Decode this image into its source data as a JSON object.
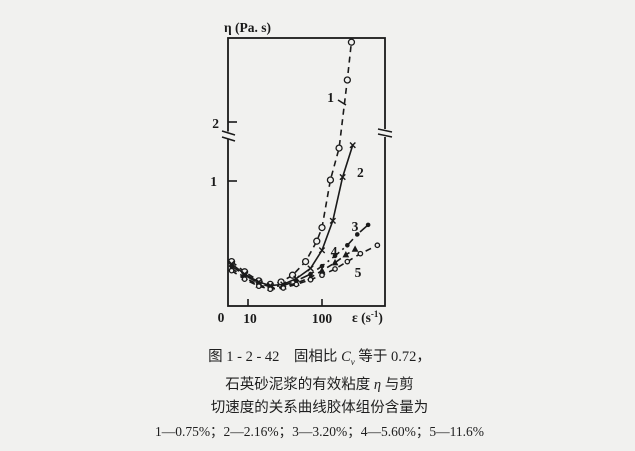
{
  "page": {
    "background": "#f1f1ef",
    "ink": "#1a1a1a"
  },
  "chart": {
    "ylabel_text": "η (Pa. s)",
    "xlabel_pre": "ε (s",
    "xlabel_sup": "-1",
    "xlabel_post": ")",
    "y_tick_2": "2",
    "y_tick_1": "1",
    "x_tick_0": "0",
    "x_tick_10": "10",
    "x_tick_100": "100",
    "curve_labels": {
      "c1": "1",
      "c2": "2",
      "c3": "3",
      "c4": "4",
      "c5": "5"
    }
  },
  "caption": {
    "line1_prefix": "图 1 - 2 - 42　固相比 ",
    "line1_var": "C",
    "line1_sub": "v",
    "line1_suffix": " 等于 0.72，",
    "line2_prefix": "石英砂泥浆的有效粘度 ",
    "line2_var": "η",
    "line2_suffix": " 与剪",
    "line3": "切速度的关系曲线胶体组份含量为",
    "legend": "1—0.75%；2—2.16%；3—3.20%；4—5.60%；5—11.6%"
  },
  "chart_data": {
    "type": "line",
    "title": "图 1-2-42 固相比 Cv 等于 0.72，石英砂泥浆的有效粘度 η 与剪切速度的关系曲线",
    "xlabel": "ε (s⁻¹)",
    "ylabel": "η (Pa.s)",
    "xscale": "log",
    "x_ticks_shown": [
      0,
      10,
      100
    ],
    "y_ticks_shown": [
      1,
      2
    ],
    "y_axis_break_above": 2,
    "grid": false,
    "legend_note": "胶体组份含量: 1—0.75%；2—2.16%；3—3.20%；4—5.60%；5—11.6%",
    "series": [
      {
        "label": "1",
        "colloid_content": "0.75%",
        "line_style": "dashed",
        "marker": "circle-open",
        "data": [
          [
            6,
            0.38
          ],
          [
            9,
            0.29
          ],
          [
            14,
            0.21
          ],
          [
            20,
            0.18
          ],
          [
            28,
            0.2
          ],
          [
            40,
            0.26
          ],
          [
            60,
            0.38
          ],
          [
            85,
            0.55
          ],
          [
            100,
            0.65
          ],
          [
            130,
            1.0
          ],
          [
            170,
            1.55
          ],
          [
            220,
            3.0
          ],
          [
            250,
            4.8
          ]
        ]
      },
      {
        "label": "2",
        "colloid_content": "2.16%",
        "line_style": "solid",
        "marker": "x",
        "data": [
          [
            6,
            0.36
          ],
          [
            9,
            0.27
          ],
          [
            14,
            0.2
          ],
          [
            20,
            0.17
          ],
          [
            30,
            0.18
          ],
          [
            45,
            0.23
          ],
          [
            70,
            0.32
          ],
          [
            100,
            0.48
          ],
          [
            140,
            0.7
          ],
          [
            190,
            1.05
          ],
          [
            260,
            1.6
          ]
        ]
      },
      {
        "label": "3",
        "colloid_content": "3.20%",
        "line_style": "dash-dot",
        "marker": "circle-filled",
        "data": [
          [
            6,
            0.34
          ],
          [
            9,
            0.26
          ],
          [
            14,
            0.19
          ],
          [
            20,
            0.16
          ],
          [
            30,
            0.17
          ],
          [
            45,
            0.21
          ],
          [
            70,
            0.27
          ],
          [
            100,
            0.34
          ],
          [
            150,
            0.43
          ],
          [
            220,
            0.52
          ],
          [
            300,
            0.6
          ],
          [
            420,
            0.67
          ]
        ]
      },
      {
        "label": "4",
        "colloid_content": "5.60%",
        "line_style": "dashed",
        "marker": "triangle-filled",
        "data": [
          [
            6,
            0.32
          ],
          [
            9,
            0.24
          ],
          [
            14,
            0.175
          ],
          [
            20,
            0.15
          ],
          [
            30,
            0.16
          ],
          [
            45,
            0.19
          ],
          [
            70,
            0.24
          ],
          [
            100,
            0.3
          ],
          [
            150,
            0.37
          ],
          [
            210,
            0.44
          ],
          [
            280,
            0.49
          ]
        ]
      },
      {
        "label": "5",
        "colloid_content": "11.6%",
        "line_style": "dashed",
        "marker": "circle-open-small",
        "data": [
          [
            6,
            0.3
          ],
          [
            9,
            0.225
          ],
          [
            14,
            0.165
          ],
          [
            20,
            0.14
          ],
          [
            30,
            0.15
          ],
          [
            45,
            0.18
          ],
          [
            70,
            0.22
          ],
          [
            100,
            0.26
          ],
          [
            150,
            0.315
          ],
          [
            220,
            0.38
          ],
          [
            330,
            0.45
          ],
          [
            560,
            0.52
          ]
        ]
      }
    ]
  }
}
